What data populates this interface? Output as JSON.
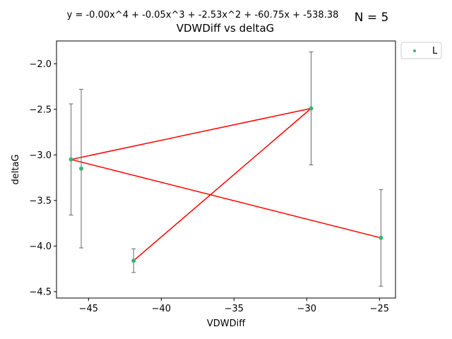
{
  "chart_data": {
    "type": "scatter",
    "title": "VDWDiff vs deltaG",
    "equation": "y = -0.00x^4 + -0.05x^3 + -2.53x^2 + -60.75x + -538.38",
    "n_label": "N = 5",
    "xlabel": "VDWDiff",
    "ylabel": "deltaG",
    "xlim": [
      -47.2,
      -23.9
    ],
    "ylim": [
      -4.57,
      -1.75
    ],
    "xticks": [
      -45,
      -40,
      -35,
      -30,
      -25
    ],
    "xtick_labels": [
      "−45",
      "−40",
      "−35",
      "−30",
      "−25"
    ],
    "yticks": [
      -4.5,
      -4.0,
      -3.5,
      -3.0,
      -2.5,
      -2.0
    ],
    "ytick_labels": [
      "−4.5",
      "−4.0",
      "−3.5",
      "−3.0",
      "−2.5",
      "−2.0"
    ],
    "legend": {
      "label": "L",
      "placement": "outside top-right"
    },
    "colors": {
      "points": "#3cb371",
      "fit_line": "#ff0000",
      "error_bars": "#696969"
    },
    "series": [
      {
        "name": "L",
        "points": [
          {
            "x": -46.2,
            "y": -3.05,
            "err": 0.61
          },
          {
            "x": -45.5,
            "y": -3.15,
            "err": 0.87
          },
          {
            "x": -41.9,
            "y": -4.16,
            "err": 0.13
          },
          {
            "x": -29.7,
            "y": -2.49,
            "err": 0.62
          },
          {
            "x": -24.9,
            "y": -3.91,
            "err": 0.53
          }
        ]
      }
    ],
    "fit_line": [
      {
        "x": -41.9,
        "y": -4.16
      },
      {
        "x": -29.7,
        "y": -2.49
      },
      {
        "x": -46.2,
        "y": -3.05
      },
      {
        "x": -24.9,
        "y": -3.91
      }
    ]
  }
}
